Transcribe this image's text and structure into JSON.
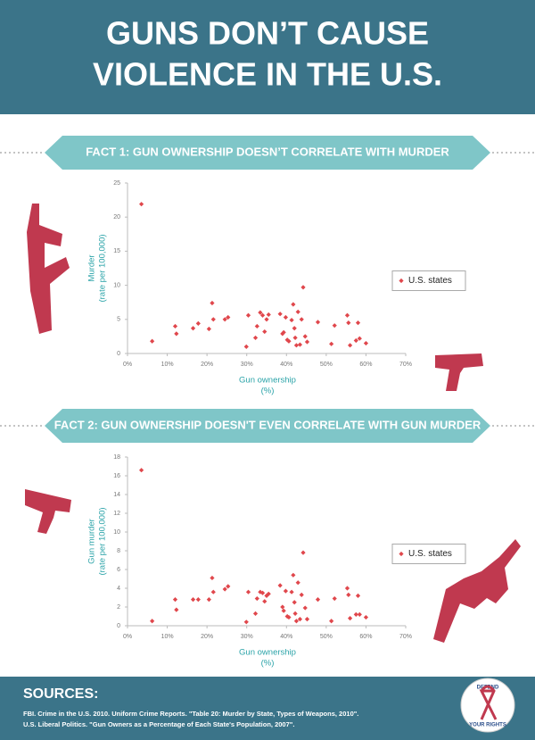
{
  "header": {
    "title": [
      "GUNS DON’T CAUSE",
      "VIOLENCE IN THE U.S."
    ]
  },
  "sources": {
    "heading": "SOURCES:",
    "lines": [
      "FBI. Crime in the U.S. 2010. Uniform Crime Reports. \"Table 20: Murder by State, Types of Weapons, 2010\".",
      "U.S. Liberal Politics. \"Gun Owners as a Percentage of Each State's Population, 2007\"."
    ]
  },
  "badge": {
    "top": "DEFEND",
    "bottom": "YOUR RIGHTS"
  },
  "chart_data": [
    {
      "type": "scatter",
      "title": "FACT 1: GUN OWNERSHIP DOESN’T CORRELATE WITH MURDER",
      "x_label": [
        "Gun ownership",
        "(%)"
      ],
      "y_label": [
        "Murder",
        "(rate per 100,000)"
      ],
      "x": [
        3.5,
        6.2,
        12.0,
        12.3,
        16.5,
        17.8,
        20.5,
        21.3,
        21.6,
        24.5,
        25.3,
        29.9,
        30.4,
        32.2,
        32.6,
        33.4,
        34.0,
        34.5,
        35.0,
        35.5,
        38.4,
        39.0,
        39.3,
        39.8,
        40.2,
        40.6,
        41.3,
        41.7,
        42.0,
        42.2,
        42.5,
        42.9,
        43.4,
        43.8,
        44.2,
        44.7,
        45.2,
        47.9,
        51.3,
        52.1,
        55.3,
        55.6,
        56.0,
        57.5,
        58.0,
        58.4,
        60.0
      ],
      "series": [
        {
          "name": "U.S. states",
          "color": "#e0474c",
          "values": [
            21.9,
            1.8,
            4.0,
            2.9,
            3.7,
            4.4,
            3.6,
            7.4,
            5.0,
            5.0,
            5.3,
            1.0,
            5.6,
            2.3,
            4.0,
            6.0,
            5.6,
            3.2,
            5.0,
            5.7,
            5.8,
            2.9,
            3.1,
            5.3,
            2.0,
            1.8,
            4.9,
            7.2,
            3.7,
            2.3,
            1.2,
            6.1,
            1.3,
            5.0,
            9.7,
            2.5,
            1.7,
            4.6,
            1.4,
            4.1,
            5.6,
            4.5,
            1.2,
            1.9,
            4.5,
            2.2,
            1.5
          ]
        }
      ],
      "xlim": [
        0,
        70
      ],
      "xticks": [
        {
          "value": 0,
          "label": "0%"
        },
        {
          "value": 10,
          "label": "10%"
        },
        {
          "value": 20,
          "label": "20%"
        },
        {
          "value": 30,
          "label": "30%"
        },
        {
          "value": 40,
          "label": "40%"
        },
        {
          "value": 50,
          "label": "50%"
        },
        {
          "value": 60,
          "label": "60%"
        },
        {
          "value": 70,
          "label": "70%"
        }
      ],
      "ylim": [
        0,
        25
      ],
      "yticks": [
        0,
        5,
        10,
        15,
        20,
        25
      ],
      "legend": "right"
    },
    {
      "type": "scatter",
      "title": "FACT 2: GUN OWNERSHIP DOESN'T EVEN CORRELATE WITH GUN MURDER",
      "x_label": [
        "Gun ownership",
        "(%)"
      ],
      "y_label": [
        "Gun murder",
        "(rate per 100,000)"
      ],
      "x": [
        3.5,
        6.2,
        12.0,
        12.3,
        16.5,
        17.8,
        20.5,
        21.3,
        21.6,
        24.5,
        25.3,
        29.9,
        30.4,
        32.2,
        32.6,
        33.4,
        34.0,
        34.5,
        35.0,
        35.5,
        38.4,
        39.0,
        39.3,
        39.8,
        40.2,
        40.6,
        41.3,
        41.7,
        42.0,
        42.2,
        42.5,
        42.9,
        43.4,
        43.8,
        44.2,
        44.7,
        45.2,
        47.9,
        51.3,
        52.1,
        55.3,
        55.6,
        56.0,
        57.5,
        58.0,
        58.4,
        60.0
      ],
      "series": [
        {
          "name": "U.S. states",
          "color": "#e0474c",
          "values": [
            16.6,
            0.5,
            2.8,
            1.7,
            2.8,
            2.8,
            2.8,
            5.1,
            3.6,
            3.9,
            4.2,
            0.4,
            3.6,
            1.3,
            2.9,
            3.6,
            3.5,
            2.6,
            3.2,
            3.4,
            4.3,
            2.0,
            1.6,
            3.7,
            1.0,
            0.9,
            3.6,
            5.4,
            2.5,
            1.3,
            0.5,
            4.6,
            0.7,
            3.3,
            7.8,
            1.9,
            0.7,
            2.8,
            0.5,
            2.9,
            4.0,
            3.3,
            0.8,
            1.2,
            3.2,
            1.2,
            0.9
          ]
        }
      ],
      "xlim": [
        0,
        70
      ],
      "xticks": [
        {
          "value": 0,
          "label": "0%"
        },
        {
          "value": 10,
          "label": "10%"
        },
        {
          "value": 20,
          "label": "20%"
        },
        {
          "value": 30,
          "label": "30%"
        },
        {
          "value": 40,
          "label": "40%"
        },
        {
          "value": 50,
          "label": "50%"
        },
        {
          "value": 60,
          "label": "60%"
        },
        {
          "value": 70,
          "label": "70%"
        }
      ],
      "ylim": [
        0,
        18
      ],
      "yticks": [
        0,
        2,
        4,
        6,
        8,
        10,
        12,
        14,
        16,
        18
      ],
      "legend": "right"
    }
  ]
}
